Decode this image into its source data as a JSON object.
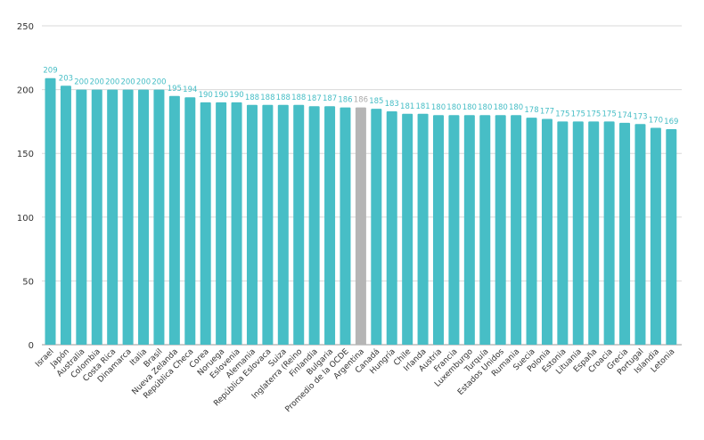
{
  "chart_data": {
    "type": "bar",
    "categories": [
      "Israel",
      "Japón",
      "Australia",
      "Colombia",
      "Costa Rica",
      "Dinamarca",
      "Italia",
      "Brasil",
      "Nueva Zelanda",
      "República Checa",
      "Corea",
      "Noruega",
      "Eslovenia",
      "Alemania",
      "República Eslovaca",
      "Suiza",
      "Inglaterra (Reino",
      "Finlandia",
      "Bulgaria",
      "Promedio de la OCDE",
      "Argentina",
      "Canadá",
      "Hungría",
      "Chile",
      "Irlanda",
      "Austria",
      "Francia",
      "Luxemburgo",
      "Turquía",
      "Estados Unidos",
      "Rumania",
      "Suecia",
      "Polonia",
      "Estonia",
      "Lituania",
      "España",
      "Croacia",
      "Grecia",
      "Portugal",
      "Islandia",
      "Letonia"
    ],
    "values": [
      209,
      203,
      200,
      200,
      200,
      200,
      200,
      200,
      195,
      194,
      190,
      190,
      190,
      188,
      188,
      188,
      188,
      187,
      187,
      186,
      186,
      185,
      183,
      181,
      181,
      180,
      180,
      180,
      180,
      180,
      180,
      178,
      177,
      175,
      175,
      175,
      175,
      174,
      173,
      170,
      169
    ],
    "highlight_category": "Argentina",
    "colors": {
      "bar": "#47BEC6",
      "highlight": "#B5B5B5",
      "label": "#47BEC6",
      "highlight_label": "#AAAAAA",
      "grid": "#D9D9D9"
    },
    "yticks": [
      0,
      50,
      100,
      150,
      200,
      250
    ],
    "ylim": [
      0,
      250
    ],
    "grid": true,
    "title": "",
    "xlabel": "",
    "ylabel": ""
  }
}
